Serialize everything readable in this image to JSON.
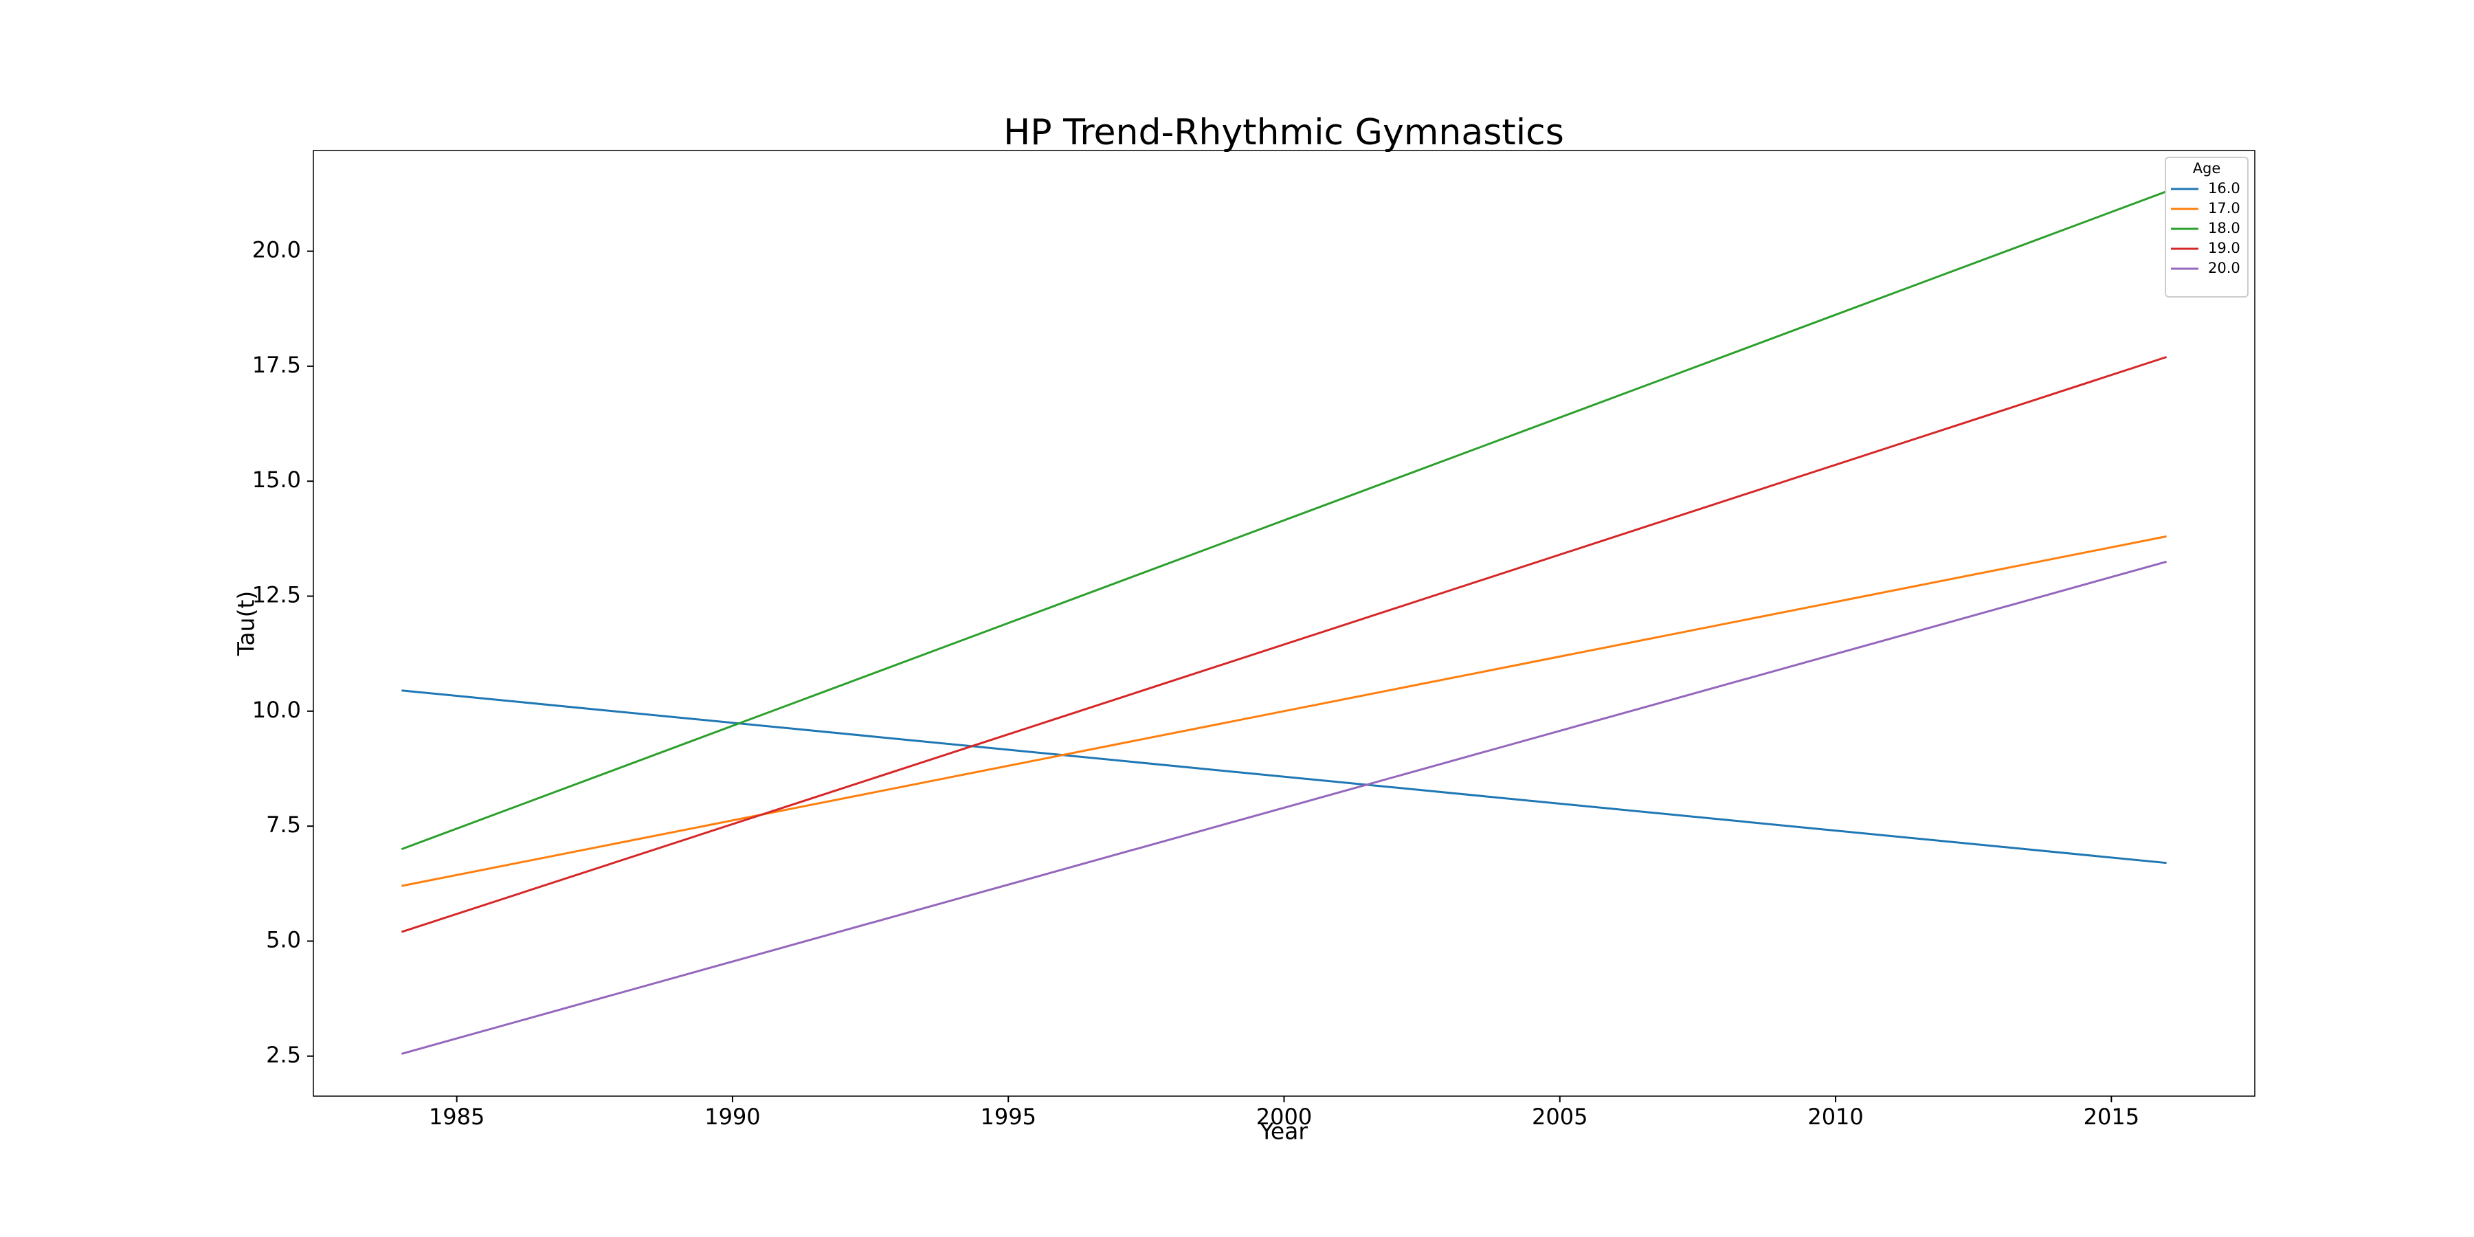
{
  "chart_data": {
    "type": "line",
    "title": "HP Trend-Rhythmic Gymnastics",
    "x_label": "Year",
    "y_label": "Tau(t)",
    "x": [
      1984,
      2016
    ],
    "series": [
      {
        "name": "16.0",
        "color": "#1f77b4",
        "values": [
          10.45,
          6.7
        ]
      },
      {
        "name": "17.0",
        "color": "#ff7f0e",
        "values": [
          6.2,
          13.8
        ]
      },
      {
        "name": "18.0",
        "color": "#2ca02c",
        "values": [
          7.0,
          21.3
        ]
      },
      {
        "name": "19.0",
        "color": "#d62728",
        "values": [
          5.2,
          17.7
        ]
      },
      {
        "name": "20.0",
        "color": "#9467bd",
        "values": [
          2.55,
          13.25
        ]
      }
    ],
    "legend_title": "Age",
    "legend": "upper right",
    "xlim": [
      1982.4,
      2017.6
    ],
    "xticks": [
      1985,
      1990,
      1995,
      2000,
      2005,
      2010,
      2015
    ],
    "ylim": [
      1.63,
      22.19
    ],
    "yticks": [
      2.5,
      {
        "value": 5,
        "label": "5.0"
      },
      7.5,
      {
        "value": 10,
        "label": "10.0"
      },
      12.5,
      {
        "value": 15,
        "label": "15.0"
      },
      17.5,
      {
        "value": 20,
        "label": "20.0"
      }
    ],
    "grid": false
  }
}
